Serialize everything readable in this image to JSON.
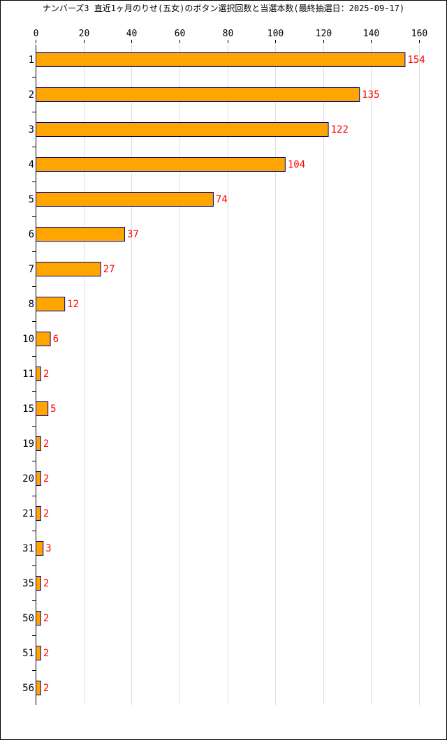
{
  "title": "ナンバーズ3 直近1ヶ月のりせ(五女)のボタン選択回数と当選本数(最終抽選日：2025-09-17)",
  "colors": {
    "bar_fill": "#FFA500",
    "bar_stroke": "#00008B",
    "value_label": "#FF0000",
    "grid": "#DDDDDD",
    "axis": "#000000",
    "text": "#000000"
  },
  "chart_data": {
    "type": "bar",
    "orientation": "horizontal",
    "title": "ナンバーズ3 直近1ヶ月のりせ(五女)のボタン選択回数と当選本数(最終抽選日：2025-09-17)",
    "categories": [
      "1",
      "2",
      "3",
      "4",
      "5",
      "6",
      "7",
      "8",
      "10",
      "11",
      "15",
      "19",
      "20",
      "21",
      "31",
      "35",
      "50",
      "51",
      "56"
    ],
    "values": [
      154,
      135,
      122,
      104,
      74,
      37,
      27,
      12,
      6,
      2,
      5,
      2,
      2,
      2,
      3,
      2,
      2,
      2,
      2
    ],
    "xlim": [
      0,
      160
    ],
    "x_ticks": [
      0,
      20,
      40,
      60,
      80,
      100,
      120,
      140,
      160
    ],
    "x_axis_position": "top",
    "grid": true,
    "data_labels": true,
    "xlabel": "",
    "ylabel": ""
  }
}
